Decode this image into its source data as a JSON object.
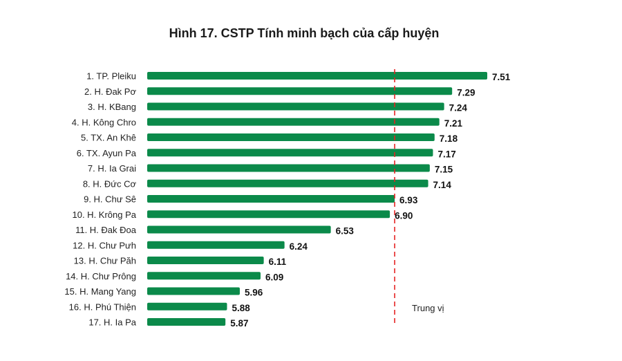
{
  "chart_data": {
    "type": "bar",
    "orientation": "horizontal",
    "title": "Hình 17. CSTP Tính minh bạch của cấp huyện",
    "categories": [
      "1. TP. Pleiku",
      "2. H. Đak Pơ",
      "3. H. KBang",
      "4. H. Kông Chro",
      "5. TX. An Khê",
      "6. TX. Ayun Pa",
      "7. H. Ia Grai",
      "8. H. Đức Cơ",
      "9. H. Chư Sê",
      "10. H. Krông Pa",
      "11. H. Đak Đoa",
      "12. H. Chư Pưh",
      "13. H. Chư Păh",
      "14. H. Chư Prông",
      "15. H. Mang Yang",
      "16. H. Phú Thiện",
      "17. H. Ia Pa"
    ],
    "values": [
      7.51,
      7.29,
      7.24,
      7.21,
      7.18,
      7.17,
      7.15,
      7.14,
      6.93,
      6.9,
      6.53,
      6.24,
      6.11,
      6.09,
      5.96,
      5.88,
      5.87
    ],
    "data_labels": [
      "7.51",
      "7.29",
      "7.24",
      "7.21",
      "7.18",
      "7.17",
      "7.15",
      "7.14",
      "6.93",
      "6.90",
      "6.53",
      "6.24",
      "6.11",
      "6.09",
      "5.96",
      "5.88",
      "5.87"
    ],
    "reference_line": {
      "label": "Trung vị",
      "value": 6.93,
      "color": "#e52222",
      "style": "dashed"
    },
    "bar_color": "#0b8a4a",
    "grid": false,
    "legend": "none"
  }
}
